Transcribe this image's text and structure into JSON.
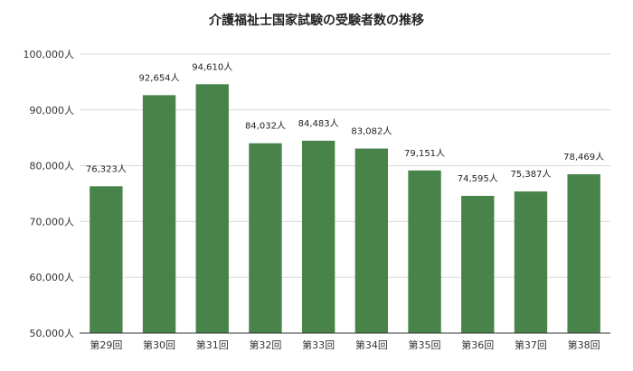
{
  "chart_data": {
    "type": "bar",
    "title": "介護福祉士国家試験の受験者数の推移",
    "categories": [
      "第29回",
      "第30回",
      "第31回",
      "第32回",
      "第33回",
      "第34回",
      "第35回",
      "第36回",
      "第37回",
      "第38回"
    ],
    "values": [
      76323,
      92654,
      94610,
      84032,
      84483,
      83082,
      79151,
      74595,
      75387,
      78469
    ],
    "data_labels": [
      "76,323人",
      "92,654人",
      "94,610人",
      "84,032人",
      "84,483人",
      "83,082人",
      "79,151人",
      "74,595人",
      "75,387人",
      "78,469人"
    ],
    "yticks": [
      50000,
      60000,
      70000,
      80000,
      90000,
      100000
    ],
    "ytick_labels": [
      "50,000人",
      "60,000人",
      "70,000人",
      "80,000人",
      "90,000人",
      "100,000人"
    ],
    "ylim": [
      50000,
      100000
    ],
    "xlabel": "",
    "ylabel": "",
    "grid": true,
    "bar_color": "#48844a"
  }
}
